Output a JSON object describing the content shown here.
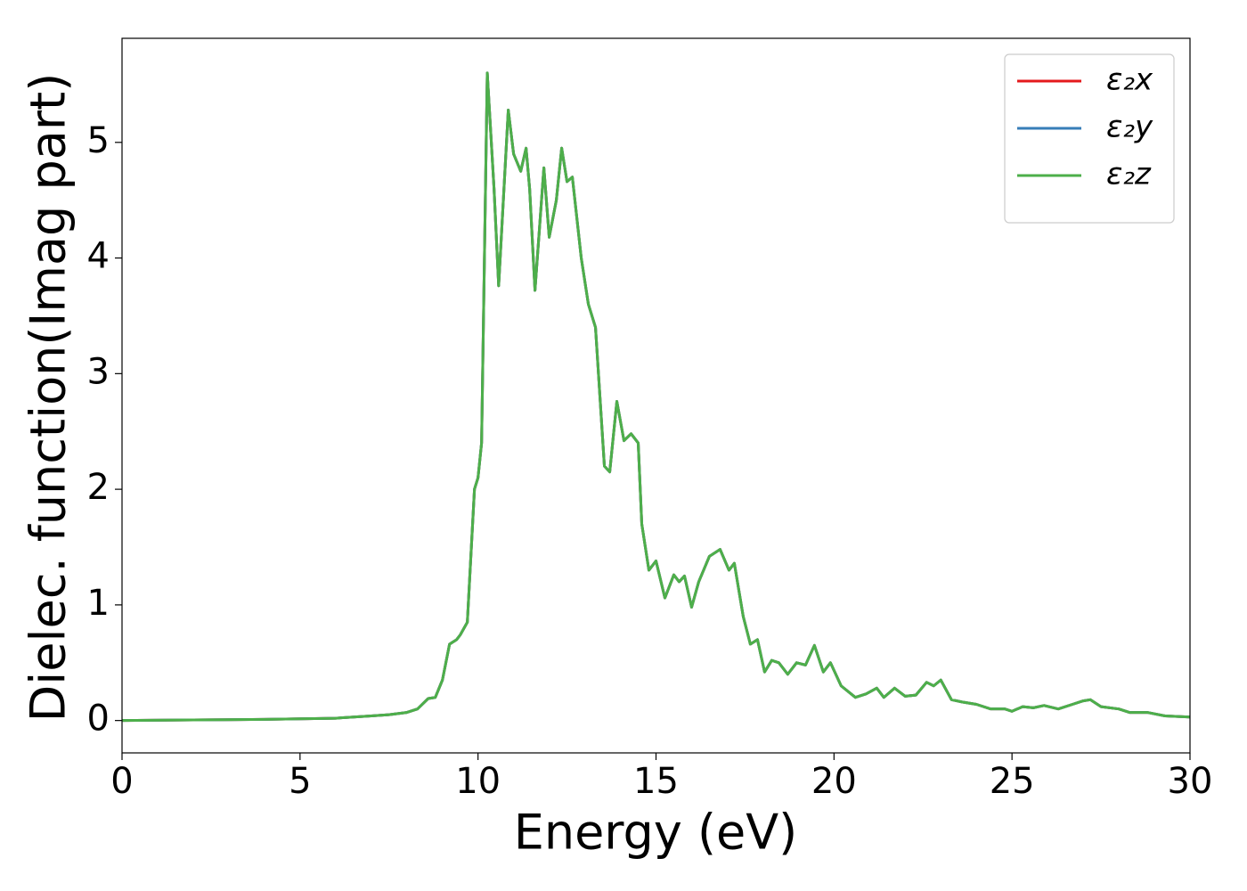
{
  "chart_data": {
    "type": "line",
    "xlabel": "Energy (eV)",
    "ylabel": "Dielec. function(Imag part)",
    "xlim": [
      0,
      30
    ],
    "ylim": [
      -0.28,
      5.9
    ],
    "xticks": [
      0,
      5,
      10,
      15,
      20,
      25,
      30
    ],
    "yticks": [
      0,
      1,
      2,
      3,
      4,
      5
    ],
    "legend": "upper right",
    "x": [
      0,
      2,
      4,
      5,
      6,
      7,
      7.5,
      8,
      8.3,
      8.6,
      8.8,
      9.0,
      9.2,
      9.4,
      9.5,
      9.7,
      9.9,
      10.0,
      10.1,
      10.26,
      10.45,
      10.58,
      10.85,
      11.0,
      11.2,
      11.35,
      11.45,
      11.6,
      11.85,
      12.0,
      12.2,
      12.35,
      12.5,
      12.65,
      12.9,
      13.1,
      13.3,
      13.55,
      13.7,
      13.9,
      14.1,
      14.3,
      14.5,
      14.6,
      14.8,
      15.0,
      15.25,
      15.5,
      15.65,
      15.8,
      16.0,
      16.2,
      16.5,
      16.65,
      16.8,
      17.05,
      17.2,
      17.45,
      17.65,
      17.85,
      18.05,
      18.25,
      18.45,
      18.7,
      18.95,
      19.2,
      19.45,
      19.7,
      19.9,
      20.2,
      20.6,
      20.9,
      21.2,
      21.4,
      21.7,
      22.0,
      22.3,
      22.6,
      22.8,
      23.0,
      23.3,
      23.6,
      24.0,
      24.4,
      24.8,
      25.0,
      25.3,
      25.6,
      25.9,
      26.3,
      26.7,
      27.0,
      27.2,
      27.5,
      28.0,
      28.3,
      28.8,
      29.3,
      30
    ],
    "series": [
      {
        "name": "ε₂x",
        "color": "#e41a1c",
        "values": [
          0,
          0.005,
          0.01,
          0.015,
          0.02,
          0.04,
          0.05,
          0.07,
          0.1,
          0.19,
          0.2,
          0.35,
          0.66,
          0.7,
          0.74,
          0.85,
          2.0,
          2.1,
          2.4,
          5.6,
          4.6,
          3.76,
          5.28,
          4.9,
          4.75,
          4.95,
          4.6,
          3.72,
          4.78,
          4.18,
          4.5,
          4.95,
          4.66,
          4.7,
          4.0,
          3.6,
          3.4,
          2.2,
          2.15,
          2.76,
          2.42,
          2.48,
          2.4,
          1.7,
          1.3,
          1.38,
          1.06,
          1.26,
          1.2,
          1.25,
          0.98,
          1.2,
          1.42,
          1.45,
          1.48,
          1.3,
          1.36,
          0.9,
          0.66,
          0.7,
          0.42,
          0.52,
          0.5,
          0.4,
          0.5,
          0.48,
          0.65,
          0.42,
          0.5,
          0.3,
          0.2,
          0.23,
          0.28,
          0.2,
          0.28,
          0.21,
          0.22,
          0.33,
          0.3,
          0.35,
          0.18,
          0.16,
          0.14,
          0.1,
          0.1,
          0.08,
          0.12,
          0.11,
          0.13,
          0.1,
          0.14,
          0.17,
          0.18,
          0.12,
          0.1,
          0.07,
          0.07,
          0.04,
          0.03
        ]
      },
      {
        "name": "ε₂y",
        "color": "#377eb8",
        "values": [
          0,
          0.005,
          0.01,
          0.015,
          0.02,
          0.04,
          0.05,
          0.07,
          0.1,
          0.19,
          0.2,
          0.35,
          0.66,
          0.7,
          0.74,
          0.85,
          2.0,
          2.1,
          2.4,
          5.6,
          4.6,
          3.76,
          5.28,
          4.9,
          4.75,
          4.95,
          4.6,
          3.72,
          4.78,
          4.18,
          4.5,
          4.95,
          4.66,
          4.7,
          4.0,
          3.6,
          3.4,
          2.2,
          2.15,
          2.76,
          2.42,
          2.48,
          2.4,
          1.7,
          1.3,
          1.38,
          1.06,
          1.26,
          1.2,
          1.25,
          0.98,
          1.2,
          1.42,
          1.45,
          1.48,
          1.3,
          1.36,
          0.9,
          0.66,
          0.7,
          0.42,
          0.52,
          0.5,
          0.4,
          0.5,
          0.48,
          0.65,
          0.42,
          0.5,
          0.3,
          0.2,
          0.23,
          0.28,
          0.2,
          0.28,
          0.21,
          0.22,
          0.33,
          0.3,
          0.35,
          0.18,
          0.16,
          0.14,
          0.1,
          0.1,
          0.08,
          0.12,
          0.11,
          0.13,
          0.1,
          0.14,
          0.17,
          0.18,
          0.12,
          0.1,
          0.07,
          0.07,
          0.04,
          0.03
        ]
      },
      {
        "name": "ε₂z",
        "color": "#4daf4a",
        "values": [
          0,
          0.005,
          0.01,
          0.015,
          0.02,
          0.04,
          0.05,
          0.07,
          0.1,
          0.19,
          0.2,
          0.35,
          0.66,
          0.7,
          0.74,
          0.85,
          2.0,
          2.1,
          2.4,
          5.6,
          4.6,
          3.76,
          5.28,
          4.9,
          4.75,
          4.95,
          4.6,
          3.72,
          4.78,
          4.18,
          4.5,
          4.95,
          4.66,
          4.7,
          4.0,
          3.6,
          3.4,
          2.2,
          2.15,
          2.76,
          2.42,
          2.48,
          2.4,
          1.7,
          1.3,
          1.38,
          1.06,
          1.26,
          1.2,
          1.25,
          0.98,
          1.2,
          1.42,
          1.45,
          1.48,
          1.3,
          1.36,
          0.9,
          0.66,
          0.7,
          0.42,
          0.52,
          0.5,
          0.4,
          0.5,
          0.48,
          0.65,
          0.42,
          0.5,
          0.3,
          0.2,
          0.23,
          0.28,
          0.2,
          0.28,
          0.21,
          0.22,
          0.33,
          0.3,
          0.35,
          0.18,
          0.16,
          0.14,
          0.1,
          0.1,
          0.08,
          0.12,
          0.11,
          0.13,
          0.1,
          0.14,
          0.17,
          0.18,
          0.12,
          0.1,
          0.07,
          0.07,
          0.04,
          0.03
        ]
      }
    ]
  }
}
